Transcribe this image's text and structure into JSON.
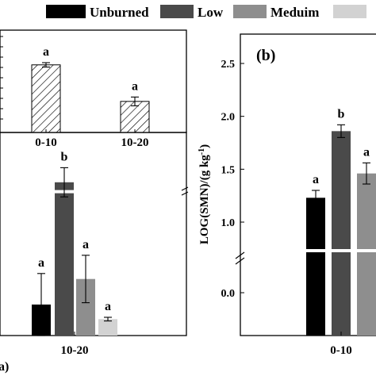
{
  "legend": {
    "items": [
      {
        "label": "Unburned",
        "color": "#000000"
      },
      {
        "label": "Low",
        "color": "#4a4a4a"
      },
      {
        "label": "Meduim",
        "color": "#8e8e8e"
      },
      {
        "label": "",
        "color": "#d2d2d2"
      }
    ]
  },
  "chart_data": [
    {
      "panel": "(a) inset",
      "type": "bar",
      "categories": [
        "0-10",
        "10-20"
      ],
      "series": [
        {
          "values": [
            1.85,
            0.85
          ],
          "errors": [
            0.06,
            0.12
          ]
        }
      ],
      "pattern": "diagonal-hatch",
      "letters": [
        "a",
        "a"
      ],
      "ylim": [
        0,
        2.8
      ],
      "grid": false
    },
    {
      "panel": "(a)",
      "type": "bar",
      "categories": [
        "10-20"
      ],
      "series": [
        {
          "name": "Unburned",
          "values": [
            0.85
          ],
          "errors": [
            0.85
          ]
        },
        {
          "name": "Low",
          "values": [
            4.2
          ],
          "errors": [
            0.4
          ]
        },
        {
          "name": "Meduim",
          "values": [
            1.55
          ],
          "errors": [
            0.65
          ]
        },
        {
          "name": "",
          "values": [
            0.45
          ],
          "errors": [
            0.05
          ]
        }
      ],
      "letters": [
        "a",
        "b",
        "a",
        "a"
      ],
      "axis_break": true,
      "panel_label": "a)",
      "grid": false
    },
    {
      "panel": "(b)",
      "type": "bar",
      "title": "(b)",
      "categories": [
        "0-10"
      ],
      "series": [
        {
          "name": "Unburned",
          "values": [
            1.23
          ],
          "errors": [
            0.07
          ]
        },
        {
          "name": "Low",
          "values": [
            1.86
          ],
          "errors": [
            0.06
          ]
        },
        {
          "name": "Meduim",
          "values": [
            1.46
          ],
          "errors": [
            0.1
          ]
        }
      ],
      "letters": [
        "a",
        "b",
        "a"
      ],
      "ylabel": "LOG(SMN)/(g kg⁻¹)",
      "yticks": [
        "0.0",
        "1.0",
        "1.5",
        "2.0",
        "2.5"
      ],
      "ylim": [
        0.8,
        2.7
      ],
      "axis_break": true,
      "grid": false
    }
  ]
}
